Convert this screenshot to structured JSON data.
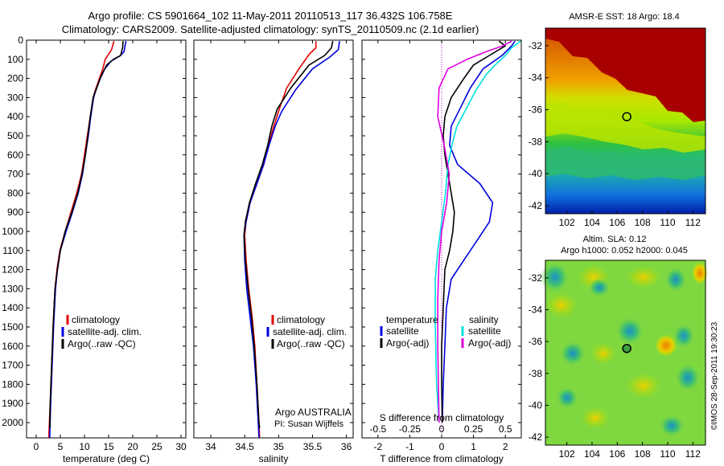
{
  "header": {
    "title_line1": "Argo profile: CS 5901664_102 11-May-2011 20110513_117 36.432S 106.758E",
    "title_line2": "Climatology: CARS2009. Satellite-adjusted climatology: synTS_20110509.nc (2.1d earlier)"
  },
  "colors": {
    "climatology": "#e00000",
    "satellite": "#0000e0",
    "argo": "#000000",
    "sal_satellite": "#00e0e0",
    "sal_argo": "#e000e0"
  },
  "chart_data": [
    {
      "type": "line",
      "name": "temperature-profile",
      "xlabel": "temperature (deg C)",
      "ylabel": "",
      "xlim": [
        -2,
        31
      ],
      "ylim": [
        2080,
        0
      ],
      "xticks": [
        0,
        5,
        10,
        15,
        20,
        25,
        30
      ],
      "yticks": [
        0,
        100,
        200,
        300,
        400,
        500,
        600,
        700,
        800,
        900,
        1000,
        1100,
        1200,
        1300,
        1400,
        1500,
        1600,
        1700,
        1800,
        1900,
        2000
      ],
      "legend": [
        "climatology",
        "satellite-adj. clim.",
        "Argo(..raw -QC)"
      ],
      "series": [
        {
          "name": "climatology",
          "color": "#e00000",
          "points": [
            [
              16.1,
              5
            ],
            [
              15.9,
              25
            ],
            [
              15.6,
              50
            ],
            [
              14.3,
              100
            ],
            [
              13.8,
              150
            ],
            [
              13.1,
              200
            ],
            [
              12.4,
              250
            ],
            [
              11.8,
              300
            ],
            [
              11.2,
              400
            ],
            [
              10.6,
              500
            ],
            [
              10.0,
              600
            ],
            [
              9.4,
              700
            ],
            [
              8.4,
              800
            ],
            [
              7.2,
              900
            ],
            [
              6.0,
              1000
            ],
            [
              4.9,
              1100
            ],
            [
              4.3,
              1200
            ],
            [
              3.9,
              1300
            ],
            [
              3.5,
              1500
            ],
            [
              3.2,
              1700
            ],
            [
              2.9,
              1900
            ],
            [
              2.6,
              2080
            ]
          ]
        },
        {
          "name": "satellite",
          "color": "#0000e0",
          "points": [
            [
              18.6,
              5
            ],
            [
              18.4,
              30
            ],
            [
              18.2,
              60
            ],
            [
              17.5,
              80
            ],
            [
              15.5,
              110
            ],
            [
              14.2,
              150
            ],
            [
              13.3,
              200
            ],
            [
              12.5,
              250
            ],
            [
              11.9,
              300
            ],
            [
              11.3,
              400
            ],
            [
              10.8,
              500
            ],
            [
              10.2,
              600
            ],
            [
              9.6,
              700
            ],
            [
              8.7,
              800
            ],
            [
              7.5,
              900
            ],
            [
              6.2,
              1000
            ],
            [
              5.0,
              1100
            ],
            [
              4.4,
              1200
            ],
            [
              4.0,
              1300
            ],
            [
              3.6,
              1500
            ],
            [
              3.3,
              1700
            ],
            [
              3.0,
              1900
            ],
            [
              2.8,
              2080
            ]
          ]
        },
        {
          "name": "argo",
          "color": "#000000",
          "points": [
            [
              18.0,
              5
            ],
            [
              17.9,
              40
            ],
            [
              17.5,
              80
            ],
            [
              16.0,
              100
            ],
            [
              14.6,
              130
            ],
            [
              13.4,
              190
            ],
            [
              12.4,
              260
            ],
            [
              11.8,
              300
            ],
            [
              11.2,
              400
            ],
            [
              10.7,
              500
            ],
            [
              10.2,
              600
            ],
            [
              9.5,
              700
            ],
            [
              8.6,
              800
            ],
            [
              7.4,
              900
            ],
            [
              6.0,
              1000
            ],
            [
              5.0,
              1100
            ],
            [
              4.4,
              1200
            ],
            [
              3.9,
              1300
            ],
            [
              3.5,
              1500
            ],
            [
              3.2,
              1700
            ],
            [
              2.9,
              1900
            ],
            [
              2.8,
              2030
            ]
          ]
        }
      ]
    },
    {
      "type": "line",
      "name": "salinity-profile",
      "xlabel": "salinity",
      "xlim": [
        33.75,
        36.1
      ],
      "ylim": [
        2080,
        0
      ],
      "xticks": [
        34,
        34.5,
        35,
        35.5,
        36
      ],
      "legend": [
        "climatology",
        "satellite-adj. clim.",
        "Argo(..raw -QC)"
      ],
      "annotation": [
        "Argo AUSTRALIA",
        "PI: Susan Wijffels"
      ],
      "series": [
        {
          "name": "climatology",
          "color": "#e00000",
          "points": [
            [
              35.55,
              5
            ],
            [
              35.55,
              40
            ],
            [
              35.45,
              75
            ],
            [
              35.3,
              150
            ],
            [
              35.12,
              250
            ],
            [
              35.02,
              350
            ],
            [
              34.93,
              450
            ],
            [
              34.85,
              550
            ],
            [
              34.78,
              650
            ],
            [
              34.68,
              750
            ],
            [
              34.58,
              850
            ],
            [
              34.52,
              950
            ],
            [
              34.5,
              1020
            ],
            [
              34.52,
              1150
            ],
            [
              34.56,
              1300
            ],
            [
              34.61,
              1450
            ],
            [
              34.65,
              1600
            ],
            [
              34.68,
              1800
            ],
            [
              34.71,
              2000
            ],
            [
              34.72,
              2080
            ]
          ]
        },
        {
          "name": "satellite",
          "color": "#0000e0",
          "points": [
            [
              35.9,
              5
            ],
            [
              35.88,
              50
            ],
            [
              35.75,
              90
            ],
            [
              35.5,
              150
            ],
            [
              35.25,
              260
            ],
            [
              35.05,
              370
            ],
            [
              34.95,
              450
            ],
            [
              34.86,
              550
            ],
            [
              34.78,
              650
            ],
            [
              34.68,
              750
            ],
            [
              34.58,
              850
            ],
            [
              34.52,
              950
            ],
            [
              34.49,
              1020
            ],
            [
              34.5,
              1150
            ],
            [
              34.53,
              1300
            ],
            [
              34.58,
              1450
            ],
            [
              34.63,
              1600
            ],
            [
              34.67,
              1800
            ],
            [
              34.7,
              2000
            ],
            [
              34.71,
              2080
            ]
          ]
        },
        {
          "name": "argo",
          "color": "#000000",
          "points": [
            [
              35.8,
              5
            ],
            [
              35.78,
              40
            ],
            [
              35.68,
              80
            ],
            [
              35.45,
              130
            ],
            [
              35.18,
              250
            ],
            [
              34.98,
              360
            ],
            [
              34.9,
              450
            ],
            [
              34.84,
              550
            ],
            [
              34.76,
              650
            ],
            [
              34.66,
              750
            ],
            [
              34.57,
              850
            ],
            [
              34.51,
              950
            ],
            [
              34.49,
              1020
            ],
            [
              34.51,
              1150
            ],
            [
              34.55,
              1300
            ],
            [
              34.6,
              1450
            ],
            [
              34.64,
              1600
            ],
            [
              34.68,
              1800
            ],
            [
              34.71,
              2000
            ],
            [
              34.72,
              2030
            ]
          ]
        }
      ]
    },
    {
      "type": "line",
      "name": "difference-profile",
      "xlabel": "T difference from climatology",
      "x2label": "S difference from climatology",
      "xlim": [
        -2.5,
        2.5
      ],
      "x2lim": [
        -0.625,
        0.625
      ],
      "ylim": [
        2080,
        0
      ],
      "xticks": [
        -2,
        -1,
        0,
        1,
        2
      ],
      "x2ticks": [
        -0.5,
        -0.25,
        0,
        0.25,
        0.5
      ],
      "x2ticklabels": [
        "-0.5",
        "-0.25",
        "0",
        "0.25",
        "0.5"
      ],
      "legend": {
        "temperature": [
          "satellite",
          "Argo(-adj)"
        ],
        "salinity": [
          "satellite",
          "Argo(-adj)"
        ],
        "headers": [
          "temperature",
          "salinity"
        ]
      },
      "series": [
        {
          "name": "T satellite",
          "color": "#0000e0",
          "points": [
            [
              2.3,
              5
            ],
            [
              2.2,
              30
            ],
            [
              1.9,
              80
            ],
            [
              1.3,
              150
            ],
            [
              0.9,
              250
            ],
            [
              0.6,
              350
            ],
            [
              0.3,
              450
            ],
            [
              0.25,
              550
            ],
            [
              0.5,
              650
            ],
            [
              1.2,
              750
            ],
            [
              1.6,
              850
            ],
            [
              1.5,
              950
            ],
            [
              1.1,
              1050
            ],
            [
              0.7,
              1150
            ],
            [
              0.3,
              1250
            ],
            [
              0.15,
              1400
            ],
            [
              0.1,
              1600
            ],
            [
              0.05,
              1800
            ],
            [
              0.02,
              2000
            ]
          ]
        },
        {
          "name": "T argo",
          "color": "#000000",
          "points": [
            [
              1.8,
              5
            ],
            [
              2.0,
              30
            ],
            [
              1.5,
              80
            ],
            [
              1.0,
              130
            ],
            [
              0.7,
              200
            ],
            [
              0.3,
              300
            ],
            [
              0.1,
              400
            ],
            [
              0.05,
              500
            ],
            [
              0.1,
              600
            ],
            [
              0.2,
              700
            ],
            [
              0.3,
              800
            ],
            [
              0.4,
              900
            ],
            [
              0.35,
              1000
            ],
            [
              0.25,
              1100
            ],
            [
              0.1,
              1200
            ],
            [
              0.05,
              1400
            ],
            [
              0.0,
              1600
            ],
            [
              0.0,
              1800
            ],
            [
              0.02,
              2000
            ]
          ]
        },
        {
          "name": "S satellite",
          "color": "#00e0e0",
          "points": [
            [
              0.62,
              5
            ],
            [
              0.55,
              40
            ],
            [
              0.5,
              80
            ],
            [
              0.42,
              130
            ],
            [
              0.35,
              180
            ],
            [
              0.27,
              260
            ],
            [
              0.2,
              350
            ],
            [
              0.12,
              450
            ],
            [
              0.08,
              550
            ],
            [
              0.05,
              650
            ],
            [
              0.03,
              800
            ],
            [
              0.0,
              950
            ],
            [
              -0.03,
              1100
            ],
            [
              -0.05,
              1250
            ],
            [
              -0.05,
              1500
            ],
            [
              -0.04,
              1800
            ],
            [
              -0.02,
              2000
            ]
          ]
        },
        {
          "name": "S argo",
          "color": "#e000e0",
          "points": [
            [
              0.55,
              5
            ],
            [
              0.48,
              30
            ],
            [
              0.35,
              60
            ],
            [
              0.2,
              100
            ],
            [
              0.05,
              150
            ],
            [
              -0.02,
              250
            ],
            [
              -0.03,
              400
            ],
            [
              0.02,
              550
            ],
            [
              0.06,
              700
            ],
            [
              0.04,
              850
            ],
            [
              0.0,
              1000
            ],
            [
              -0.02,
              1150
            ],
            [
              -0.03,
              1350
            ],
            [
              -0.03,
              1600
            ],
            [
              -0.02,
              2000
            ]
          ]
        }
      ]
    },
    {
      "type": "heatmap",
      "name": "sst-map",
      "title": "AMSR-E SST: 18 Argo: 18.4",
      "xlim": [
        100.3,
        113.0
      ],
      "ylim": [
        -42.5,
        -30.9
      ],
      "xticks": [
        102,
        104,
        106,
        108,
        110,
        112
      ],
      "yticks": [
        -32,
        -34,
        -36,
        -38,
        -40,
        -42
      ],
      "marker": {
        "lon": 106.758,
        "lat": -36.432
      }
    },
    {
      "type": "heatmap",
      "name": "sla-map",
      "title_line1": "Altim. SLA: 0.12",
      "title_line2": "Argo h1000: 0.052 h2000: 0.045",
      "xlim": [
        100.3,
        113.0
      ],
      "ylim": [
        -42.5,
        -30.9
      ],
      "xticks": [
        102,
        104,
        106,
        108,
        110,
        112
      ],
      "yticks": [
        -32,
        -34,
        -36,
        -38,
        -40,
        -42
      ],
      "marker": {
        "lon": 106.758,
        "lat": -36.432
      },
      "side_label": "©IMOS 28-Sep-2011 19:30:23"
    }
  ]
}
